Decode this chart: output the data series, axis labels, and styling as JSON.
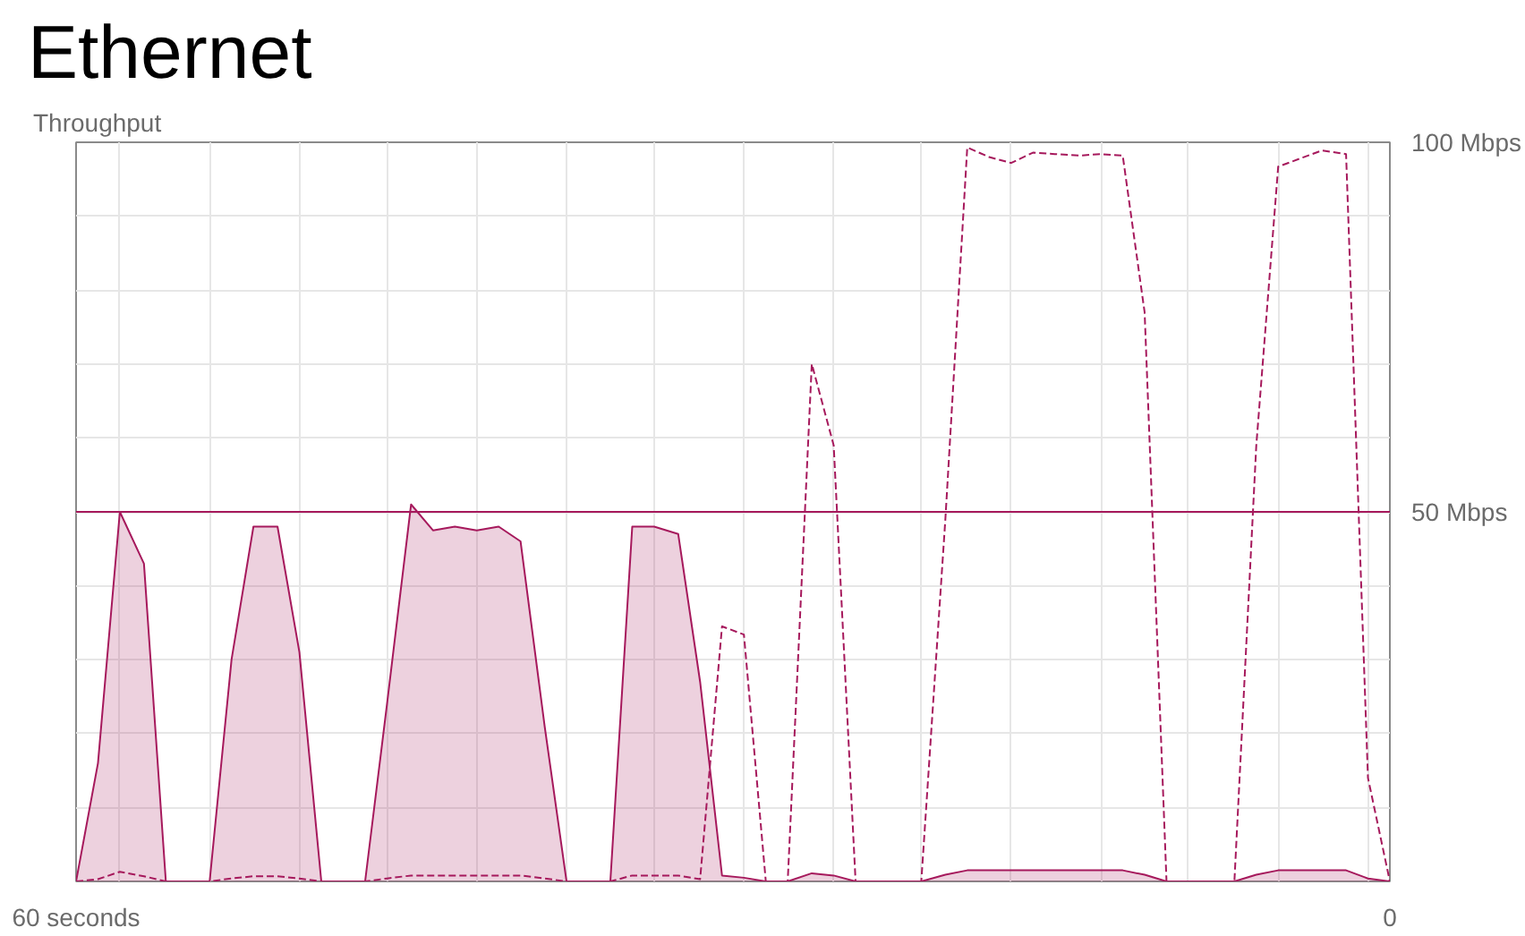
{
  "chart_data": {
    "type": "area",
    "title": "Ethernet",
    "ylabel": "Throughput",
    "x": [
      60,
      59.0,
      58.0,
      56.9,
      55.9,
      54.9,
      53.9,
      52.9,
      51.9,
      50.8,
      49.8,
      48.8,
      47.8,
      46.8,
      45.8,
      44.7,
      43.7,
      42.7,
      41.7,
      40.7,
      39.7,
      38.6,
      37.6,
      36.6,
      35.6,
      34.6,
      33.6,
      32.5,
      31.5,
      30.5,
      29.5,
      28.5,
      27.5,
      26.4,
      25.4,
      24.4,
      23.4,
      22.4,
      21.4,
      20.3,
      19.3,
      18.3,
      17.3,
      16.3,
      15.3,
      14.2,
      13.2,
      12.2,
      11.2,
      10.2,
      9.2,
      8.1,
      7.1,
      6.1,
      5.1,
      4.1,
      3.1,
      2.0,
      1.0,
      0
    ],
    "series": [
      {
        "color": "#a6195c",
        "values": [
          0,
          16,
          50,
          43,
          0,
          0,
          0,
          30,
          48,
          48,
          31,
          0,
          0,
          0,
          24,
          51,
          47.5,
          48,
          47.5,
          48,
          46,
          21,
          0,
          0,
          0,
          48,
          48,
          47,
          27,
          0.8,
          0.5,
          0,
          0,
          1.1,
          0.8,
          0,
          0,
          0,
          0,
          0.9,
          1.5,
          1.5,
          1.5,
          1.5,
          1.5,
          1.5,
          1.5,
          1.5,
          0.9,
          0,
          0,
          0,
          0,
          0.9,
          1.5,
          1.5,
          1.5,
          1.5,
          0.4,
          0
        ]
      },
      {
        "type": "line",
        "color": "#a6195c",
        "line_style": "dashed",
        "values": [
          0,
          0.3,
          1.3,
          0.7,
          0,
          0,
          0,
          0.4,
          0.7,
          0.7,
          0.4,
          0,
          0,
          0,
          0.4,
          0.8,
          0.8,
          0.8,
          0.8,
          0.8,
          0.8,
          0.4,
          0,
          0,
          0,
          0.8,
          0.8,
          0.8,
          0.3,
          34.5,
          33.4,
          0,
          0,
          70,
          59,
          0,
          0,
          0,
          0,
          49,
          99.3,
          98,
          97.2,
          98.6,
          98.4,
          98.2,
          98.4,
          98.2,
          77,
          0,
          0,
          0,
          0,
          59,
          96.7,
          97.8,
          98.9,
          98.4,
          14,
          0
        ]
      }
    ],
    "xlim": [
      60,
      0
    ],
    "ylim": [
      0,
      100
    ],
    "xticks": [
      {
        "value": 60,
        "label": "60 seconds"
      },
      {
        "value": 58.0,
        "label": null
      },
      {
        "value": 53.9,
        "label": null
      },
      {
        "value": 49.8,
        "label": null
      },
      {
        "value": 45.8,
        "label": null
      },
      {
        "value": 41.7,
        "label": null
      },
      {
        "value": 37.6,
        "label": null
      },
      {
        "value": 33.6,
        "label": null
      },
      {
        "value": 29.5,
        "label": null
      },
      {
        "value": 25.4,
        "label": null
      },
      {
        "value": 21.4,
        "label": null
      },
      {
        "value": 17.3,
        "label": null
      },
      {
        "value": 13.2,
        "label": null
      },
      {
        "value": 9.2,
        "label": null
      },
      {
        "value": 5.1,
        "label": null
      },
      {
        "value": 1.0,
        "label": null
      },
      {
        "value": 0,
        "label": "0"
      }
    ],
    "yticks": [
      {
        "value": 0,
        "label": null
      },
      {
        "value": 10,
        "label": null
      },
      {
        "value": 20,
        "label": null
      },
      {
        "value": 30,
        "label": null
      },
      {
        "value": 40,
        "label": null
      },
      {
        "value": 50,
        "label": "50 Mbps"
      },
      {
        "value": 60,
        "label": null
      },
      {
        "value": 70,
        "label": null
      },
      {
        "value": 80,
        "label": null
      },
      {
        "value": 90,
        "label": null
      },
      {
        "value": 100,
        "label": "100 Mbps"
      }
    ],
    "ref_lines": [
      {
        "axis": "y",
        "value": 50,
        "color": "#a6195c"
      }
    ],
    "grid": true
  }
}
